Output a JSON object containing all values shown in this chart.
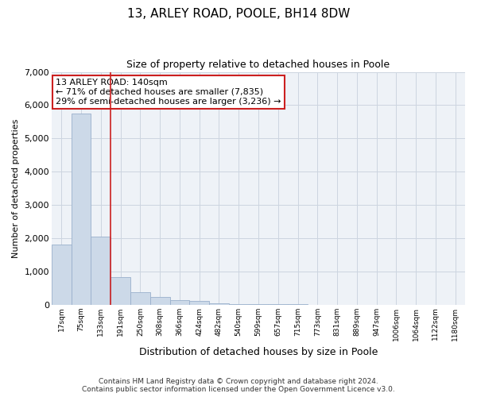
{
  "title": "13, ARLEY ROAD, POOLE, BH14 8DW",
  "subtitle": "Size of property relative to detached houses in Poole",
  "xlabel": "Distribution of detached houses by size in Poole",
  "ylabel": "Number of detached properties",
  "bar_color": "#ccd9e8",
  "bar_edge_color": "#9ab0cc",
  "grid_color": "#ccd5e0",
  "background_color": "#eef2f7",
  "vline_color": "#cc2020",
  "vline_x": 2.5,
  "annotation_text": "13 ARLEY ROAD: 140sqm\n← 71% of detached houses are smaller (7,835)\n29% of semi-detached houses are larger (3,236) →",
  "annotation_box_facecolor": "#ffffff",
  "annotation_box_edgecolor": "#cc2020",
  "categories": [
    "17sqm",
    "75sqm",
    "133sqm",
    "191sqm",
    "250sqm",
    "308sqm",
    "366sqm",
    "424sqm",
    "482sqm",
    "540sqm",
    "599sqm",
    "657sqm",
    "715sqm",
    "773sqm",
    "831sqm",
    "889sqm",
    "947sqm",
    "1006sqm",
    "1064sqm",
    "1122sqm",
    "1180sqm"
  ],
  "values": [
    1800,
    5750,
    2050,
    830,
    370,
    230,
    130,
    110,
    50,
    30,
    20,
    15,
    10,
    0,
    0,
    0,
    0,
    0,
    0,
    0,
    0
  ],
  "ylim": [
    0,
    7000
  ],
  "yticks": [
    0,
    1000,
    2000,
    3000,
    4000,
    5000,
    6000,
    7000
  ],
  "footer_line1": "Contains HM Land Registry data © Crown copyright and database right 2024.",
  "footer_line2": "Contains public sector information licensed under the Open Government Licence v3.0."
}
